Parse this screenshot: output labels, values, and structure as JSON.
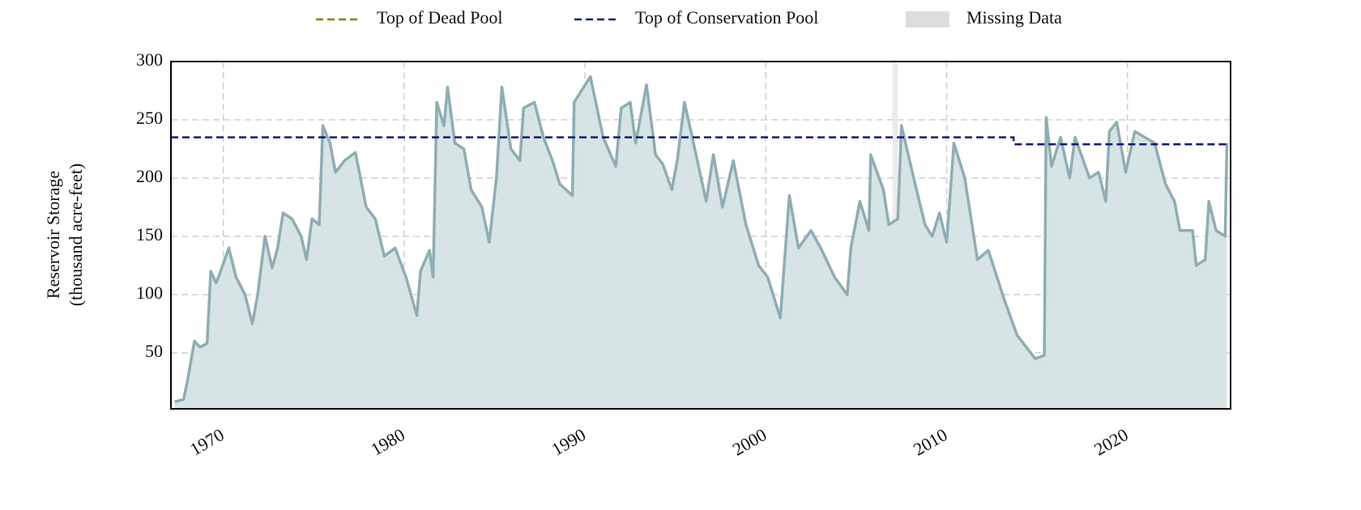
{
  "chart_data": {
    "type": "area",
    "ylabel": [
      "Reservoir Storage",
      "(thousand acre-feet)"
    ],
    "xlim": [
      1967.1,
      2025.7
    ],
    "xticks": [
      1970,
      1980,
      1990,
      2000,
      2010,
      2020
    ],
    "ylim": [
      2,
      300
    ],
    "yticks": [
      50,
      100,
      150,
      200,
      250,
      300
    ],
    "grid": true,
    "legend": "top",
    "missing_data": {
      "name": "Missing Data",
      "color": "#dddddd",
      "ranges": [
        [
          2007.0,
          2007.3
        ]
      ]
    },
    "series": [
      {
        "color": "#8fadb3",
        "fill": "#d6e4e6",
        "x": [
          1967.3,
          1967.8,
          1968.0,
          1968.4,
          1968.7,
          1969.1,
          1969.3,
          1969.6,
          1969.8,
          1970.3,
          1970.7,
          1971.2,
          1971.6,
          1971.9,
          1972.3,
          1972.7,
          1973.0,
          1973.3,
          1973.8,
          1974.3,
          1974.6,
          1974.9,
          1975.3,
          1975.5,
          1975.9,
          1976.2,
          1976.7,
          1977.3,
          1977.9,
          1978.4,
          1978.9,
          1979.5,
          1980.1,
          1980.7,
          1980.9,
          1981.4,
          1981.6,
          1981.8,
          1982.2,
          1982.4,
          1982.8,
          1983.3,
          1983.7,
          1984.3,
          1984.7,
          1985.1,
          1985.4,
          1985.9,
          1986.4,
          1986.6,
          1987.2,
          1987.7,
          1988.2,
          1988.6,
          1989.3,
          1989.4,
          1989.8,
          1990.3,
          1991.0,
          1991.7,
          1992.0,
          1992.5,
          1992.8,
          1993.4,
          1993.9,
          1994.3,
          1994.8,
          1995.1,
          1995.5,
          1996.0,
          1996.7,
          1997.1,
          1997.6,
          1998.2,
          1998.9,
          1999.6,
          2000.1,
          2000.8,
          2001.3,
          2001.8,
          2002.5,
          2003.1,
          2003.8,
          2004.5,
          2004.7,
          2005.2,
          2005.7,
          2005.8,
          2006.5,
          2006.8,
          2007.3,
          2007.5,
          2008.1,
          2008.8,
          2009.2,
          2009.6,
          2010.0,
          2010.4,
          2011.0,
          2011.7,
          2012.3,
          2013.2,
          2013.9,
          2014.9,
          2015.4,
          2015.5,
          2015.8,
          2016.3,
          2016.8,
          2017.1,
          2017.9,
          2018.4,
          2018.8,
          2019.0,
          2019.4,
          2019.9,
          2020.4,
          2021.5,
          2022.1,
          2022.6,
          2022.9,
          2023.6,
          2023.8,
          2024.3,
          2024.5,
          2024.9,
          2025.4,
          2025.5
        ],
        "values": [
          8,
          10,
          25,
          60,
          55,
          58,
          120,
          110,
          118,
          140,
          115,
          100,
          75,
          100,
          150,
          123,
          140,
          170,
          165,
          150,
          130,
          165,
          160,
          245,
          230,
          205,
          215,
          222,
          175,
          165,
          133,
          140,
          115,
          82,
          120,
          138,
          115,
          265,
          245,
          278,
          230,
          225,
          190,
          175,
          145,
          200,
          278,
          225,
          215,
          260,
          265,
          235,
          215,
          195,
          185,
          265,
          275,
          287,
          235,
          210,
          260,
          265,
          230,
          280,
          220,
          212,
          190,
          215,
          265,
          230,
          180,
          220,
          175,
          215,
          160,
          125,
          115,
          80,
          185,
          140,
          155,
          138,
          115,
          100,
          140,
          180,
          155,
          220,
          190,
          160,
          165,
          245,
          205,
          160,
          150,
          170,
          145,
          230,
          200,
          130,
          138,
          95,
          65,
          45,
          48,
          252,
          210,
          235,
          200,
          235,
          200,
          205,
          180,
          240,
          248,
          205,
          240,
          230,
          195,
          180,
          155,
          155,
          125,
          130,
          180,
          155,
          150,
          230
        ]
      },
      {
        "name": "Top of Dead Pool",
        "color": "#8b8000"
      },
      {
        "name": "Top of Conservation Pool",
        "color": "#0a1a7a",
        "x": [
          1967.1,
          2013.7,
          2013.7,
          2025.7
        ],
        "values": [
          235,
          235,
          229,
          229
        ]
      }
    ]
  }
}
